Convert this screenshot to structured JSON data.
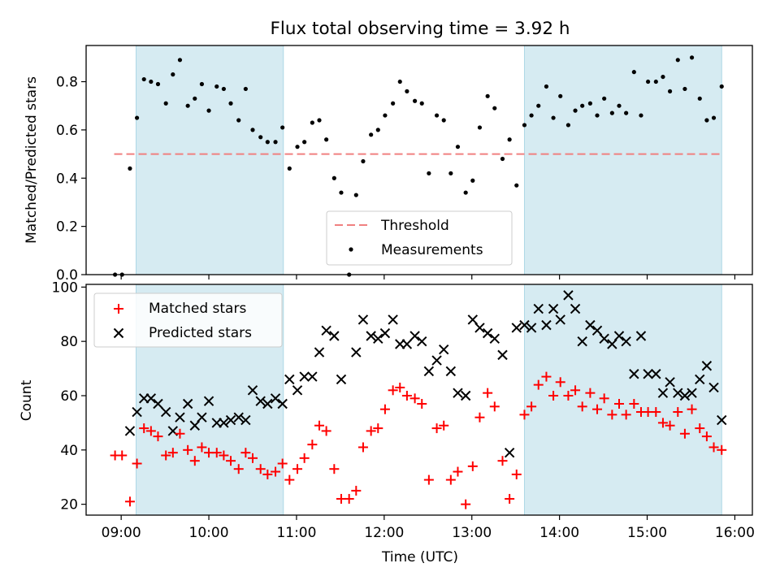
{
  "chart_data": {
    "title": "Flux total observing time = 3.92 h",
    "xlabel": "Time (UTC)",
    "x_ticks": [
      "09:00",
      "10:00",
      "11:00",
      "12:00",
      "13:00",
      "14:00",
      "15:00",
      "16:00"
    ],
    "xlim_hours": [
      8.6,
      16.2
    ],
    "observing_windows": [
      [
        9.17,
        10.85
      ],
      [
        13.6,
        15.85
      ]
    ],
    "window_color": "#add8e6",
    "top_panel": {
      "type": "scatter",
      "ylabel": "Matched/Predicted stars",
      "ylim": [
        0,
        0.95
      ],
      "yticks": [
        "0.0",
        "0.2",
        "0.4",
        "0.6",
        "0.8"
      ],
      "legend_position": "lower-center",
      "threshold": {
        "name": "Threshold",
        "value": 0.5,
        "x_range": [
          8.92,
          15.85
        ],
        "color": "#f08080"
      },
      "measurements": {
        "name": "Measurements",
        "color": "#000000",
        "points": [
          [
            8.93,
            0.0
          ],
          [
            9.01,
            0.0
          ],
          [
            9.1,
            0.44
          ],
          [
            9.18,
            0.65
          ],
          [
            9.26,
            0.81
          ],
          [
            9.34,
            0.8
          ],
          [
            9.42,
            0.79
          ],
          [
            9.51,
            0.71
          ],
          [
            9.59,
            0.83
          ],
          [
            9.67,
            0.89
          ],
          [
            9.76,
            0.7
          ],
          [
            9.84,
            0.73
          ],
          [
            9.92,
            0.79
          ],
          [
            10.0,
            0.68
          ],
          [
            10.09,
            0.78
          ],
          [
            10.17,
            0.77
          ],
          [
            10.25,
            0.71
          ],
          [
            10.34,
            0.64
          ],
          [
            10.42,
            0.77
          ],
          [
            10.5,
            0.6
          ],
          [
            10.59,
            0.57
          ],
          [
            10.67,
            0.55
          ],
          [
            10.76,
            0.55
          ],
          [
            10.84,
            0.61
          ],
          [
            10.92,
            0.44
          ],
          [
            11.01,
            0.53
          ],
          [
            11.09,
            0.55
          ],
          [
            11.18,
            0.63
          ],
          [
            11.26,
            0.64
          ],
          [
            11.34,
            0.56
          ],
          [
            11.43,
            0.4
          ],
          [
            11.51,
            0.34
          ],
          [
            11.6,
            0.0
          ],
          [
            11.68,
            0.33
          ],
          [
            11.76,
            0.47
          ],
          [
            11.85,
            0.58
          ],
          [
            11.93,
            0.6
          ],
          [
            12.01,
            0.66
          ],
          [
            12.1,
            0.71
          ],
          [
            12.18,
            0.8
          ],
          [
            12.26,
            0.76
          ],
          [
            12.35,
            0.72
          ],
          [
            12.43,
            0.71
          ],
          [
            12.51,
            0.42
          ],
          [
            12.6,
            0.66
          ],
          [
            12.68,
            0.64
          ],
          [
            12.76,
            0.42
          ],
          [
            12.84,
            0.53
          ],
          [
            12.93,
            0.34
          ],
          [
            13.01,
            0.39
          ],
          [
            13.09,
            0.61
          ],
          [
            13.18,
            0.74
          ],
          [
            13.26,
            0.69
          ],
          [
            13.35,
            0.48
          ],
          [
            13.43,
            0.56
          ],
          [
            13.51,
            0.37
          ],
          [
            13.6,
            0.62
          ],
          [
            13.68,
            0.66
          ],
          [
            13.76,
            0.7
          ],
          [
            13.85,
            0.78
          ],
          [
            13.93,
            0.65
          ],
          [
            14.01,
            0.74
          ],
          [
            14.1,
            0.62
          ],
          [
            14.18,
            0.68
          ],
          [
            14.26,
            0.7
          ],
          [
            14.35,
            0.71
          ],
          [
            14.43,
            0.66
          ],
          [
            14.51,
            0.73
          ],
          [
            14.6,
            0.67
          ],
          [
            14.68,
            0.7
          ],
          [
            14.76,
            0.67
          ],
          [
            14.85,
            0.84
          ],
          [
            14.93,
            0.66
          ],
          [
            15.01,
            0.8
          ],
          [
            15.1,
            0.8
          ],
          [
            15.18,
            0.82
          ],
          [
            15.26,
            0.76
          ],
          [
            15.35,
            0.89
          ],
          [
            15.43,
            0.77
          ],
          [
            15.51,
            0.9
          ],
          [
            15.6,
            0.73
          ],
          [
            15.68,
            0.64
          ],
          [
            15.76,
            0.65
          ],
          [
            15.85,
            0.78
          ]
        ]
      }
    },
    "bottom_panel": {
      "type": "scatter",
      "ylabel": "Count",
      "ylim": [
        16,
        101
      ],
      "yticks": [
        "20",
        "40",
        "60",
        "80",
        "100"
      ],
      "legend_position": "upper-left",
      "series": [
        {
          "name": "Matched stars",
          "marker": "+",
          "color": "#ff0000",
          "points": [
            [
              8.93,
              38
            ],
            [
              9.01,
              38
            ],
            [
              9.1,
              21
            ],
            [
              9.18,
              35
            ],
            [
              9.26,
              48
            ],
            [
              9.34,
              47
            ],
            [
              9.42,
              45
            ],
            [
              9.51,
              38
            ],
            [
              9.59,
              39
            ],
            [
              9.67,
              46
            ],
            [
              9.76,
              40
            ],
            [
              9.84,
              36
            ],
            [
              9.92,
              41
            ],
            [
              10.0,
              39
            ],
            [
              10.09,
              39
            ],
            [
              10.17,
              38
            ],
            [
              10.25,
              36
            ],
            [
              10.34,
              33
            ],
            [
              10.42,
              39
            ],
            [
              10.5,
              37
            ],
            [
              10.59,
              33
            ],
            [
              10.67,
              31
            ],
            [
              10.76,
              32
            ],
            [
              10.84,
              35
            ],
            [
              10.92,
              29
            ],
            [
              11.01,
              33
            ],
            [
              11.09,
              37
            ],
            [
              11.18,
              42
            ],
            [
              11.26,
              49
            ],
            [
              11.34,
              47
            ],
            [
              11.43,
              33
            ],
            [
              11.51,
              22
            ],
            [
              11.6,
              22
            ],
            [
              11.68,
              25
            ],
            [
              11.76,
              41
            ],
            [
              11.85,
              47
            ],
            [
              11.93,
              48
            ],
            [
              12.01,
              55
            ],
            [
              12.1,
              62
            ],
            [
              12.18,
              63
            ],
            [
              12.26,
              60
            ],
            [
              12.35,
              59
            ],
            [
              12.43,
              57
            ],
            [
              12.51,
              29
            ],
            [
              12.6,
              48
            ],
            [
              12.68,
              49
            ],
            [
              12.76,
              29
            ],
            [
              12.84,
              32
            ],
            [
              12.93,
              20
            ],
            [
              13.01,
              34
            ],
            [
              13.09,
              52
            ],
            [
              13.18,
              61
            ],
            [
              13.26,
              56
            ],
            [
              13.35,
              36
            ],
            [
              13.43,
              22
            ],
            [
              13.51,
              31
            ],
            [
              13.6,
              53
            ],
            [
              13.68,
              56
            ],
            [
              13.76,
              64
            ],
            [
              13.85,
              67
            ],
            [
              13.93,
              60
            ],
            [
              14.01,
              65
            ],
            [
              14.1,
              60
            ],
            [
              14.18,
              62
            ],
            [
              14.26,
              56
            ],
            [
              14.35,
              61
            ],
            [
              14.43,
              55
            ],
            [
              14.51,
              59
            ],
            [
              14.6,
              53
            ],
            [
              14.68,
              57
            ],
            [
              14.76,
              53
            ],
            [
              14.85,
              57
            ],
            [
              14.93,
              54
            ],
            [
              15.01,
              54
            ],
            [
              15.1,
              54
            ],
            [
              15.18,
              50
            ],
            [
              15.26,
              49
            ],
            [
              15.35,
              54
            ],
            [
              15.43,
              46
            ],
            [
              15.51,
              55
            ],
            [
              15.6,
              48
            ],
            [
              15.68,
              45
            ],
            [
              15.76,
              41
            ],
            [
              15.85,
              40
            ]
          ]
        },
        {
          "name": "Predicted stars",
          "marker": "x",
          "color": "#000000",
          "points": [
            [
              9.1,
              47
            ],
            [
              9.18,
              54
            ],
            [
              9.26,
              59
            ],
            [
              9.34,
              59
            ],
            [
              9.42,
              57
            ],
            [
              9.51,
              54
            ],
            [
              9.59,
              47
            ],
            [
              9.67,
              52
            ],
            [
              9.76,
              57
            ],
            [
              9.84,
              49
            ],
            [
              9.92,
              52
            ],
            [
              10.0,
              58
            ],
            [
              10.09,
              50
            ],
            [
              10.17,
              50
            ],
            [
              10.25,
              51
            ],
            [
              10.34,
              52
            ],
            [
              10.42,
              51
            ],
            [
              10.5,
              62
            ],
            [
              10.59,
              58
            ],
            [
              10.67,
              57
            ],
            [
              10.76,
              59
            ],
            [
              10.84,
              57
            ],
            [
              10.92,
              66
            ],
            [
              11.01,
              62
            ],
            [
              11.09,
              67
            ],
            [
              11.18,
              67
            ],
            [
              11.26,
              76
            ],
            [
              11.34,
              84
            ],
            [
              11.43,
              82
            ],
            [
              11.51,
              66
            ],
            [
              11.68,
              76
            ],
            [
              11.76,
              88
            ],
            [
              11.85,
              82
            ],
            [
              11.93,
              81
            ],
            [
              12.01,
              83
            ],
            [
              12.1,
              88
            ],
            [
              12.18,
              79
            ],
            [
              12.26,
              79
            ],
            [
              12.35,
              82
            ],
            [
              12.43,
              80
            ],
            [
              12.51,
              69
            ],
            [
              12.6,
              73
            ],
            [
              12.68,
              77
            ],
            [
              12.76,
              69
            ],
            [
              12.84,
              61
            ],
            [
              12.93,
              60
            ],
            [
              13.01,
              88
            ],
            [
              13.09,
              85
            ],
            [
              13.18,
              83
            ],
            [
              13.26,
              81
            ],
            [
              13.35,
              75
            ],
            [
              13.43,
              39
            ],
            [
              13.51,
              85
            ],
            [
              13.6,
              86
            ],
            [
              13.68,
              85
            ],
            [
              13.76,
              92
            ],
            [
              13.85,
              86
            ],
            [
              13.93,
              92
            ],
            [
              14.01,
              88
            ],
            [
              14.1,
              97
            ],
            [
              14.18,
              92
            ],
            [
              14.26,
              80
            ],
            [
              14.35,
              86
            ],
            [
              14.43,
              84
            ],
            [
              14.51,
              81
            ],
            [
              14.6,
              79
            ],
            [
              14.68,
              82
            ],
            [
              14.76,
              80
            ],
            [
              14.85,
              68
            ],
            [
              14.93,
              82
            ],
            [
              15.01,
              68
            ],
            [
              15.1,
              68
            ],
            [
              15.18,
              61
            ],
            [
              15.26,
              65
            ],
            [
              15.35,
              61
            ],
            [
              15.43,
              60
            ],
            [
              15.51,
              61
            ],
            [
              15.6,
              66
            ],
            [
              15.68,
              71
            ],
            [
              15.76,
              63
            ],
            [
              15.85,
              51
            ]
          ]
        }
      ]
    }
  }
}
